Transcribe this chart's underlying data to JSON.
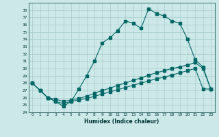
{
  "xlabel": "Humidex (Indice chaleur)",
  "bg_color": "#cce8e8",
  "grid_color": "#aacccc",
  "line_color": "#006666",
  "xlim": [
    -0.5,
    23.5
  ],
  "ylim": [
    24,
    39
  ],
  "yticks": [
    24,
    25,
    26,
    27,
    28,
    29,
    30,
    31,
    32,
    33,
    34,
    35,
    36,
    37,
    38
  ],
  "xticks": [
    0,
    1,
    2,
    3,
    4,
    5,
    6,
    7,
    8,
    9,
    10,
    11,
    12,
    13,
    14,
    15,
    16,
    17,
    18,
    19,
    20,
    21,
    22,
    23
  ],
  "series1_x": [
    0,
    1,
    2,
    3,
    4,
    5,
    6,
    7,
    8,
    9,
    10,
    11,
    12,
    13,
    14,
    15,
    16,
    17,
    18,
    19,
    20,
    21,
    22,
    23
  ],
  "series1_y": [
    28,
    27,
    26,
    25.5,
    24.8,
    25.5,
    27.2,
    29,
    31,
    33.5,
    34.2,
    35.2,
    36.5,
    36.2,
    35.5,
    38.2,
    37.5,
    37.2,
    36.5,
    36.2,
    34,
    31.2,
    30.2,
    27.2
  ],
  "series2_x": [
    0,
    1,
    2,
    3,
    4,
    5,
    6,
    7,
    8,
    9,
    10,
    11,
    12,
    13,
    14,
    15,
    16,
    17,
    18,
    19,
    20,
    21,
    22,
    23
  ],
  "series2_y": [
    28,
    27,
    26,
    25.8,
    25.5,
    25.7,
    25.9,
    26.2,
    26.6,
    27.0,
    27.3,
    27.7,
    28.0,
    28.4,
    28.7,
    29.1,
    29.4,
    29.7,
    30.0,
    30.2,
    30.5,
    30.8,
    30.0,
    27.2
  ],
  "series3_x": [
    0,
    1,
    2,
    3,
    4,
    5,
    6,
    7,
    8,
    9,
    10,
    11,
    12,
    13,
    14,
    15,
    16,
    17,
    18,
    19,
    20,
    21,
    22,
    23
  ],
  "series3_y": [
    28,
    27,
    26,
    25.5,
    25.2,
    25.5,
    25.7,
    25.9,
    26.2,
    26.5,
    26.8,
    27.1,
    27.4,
    27.7,
    28.0,
    28.3,
    28.6,
    28.8,
    29.1,
    29.4,
    29.7,
    30.0,
    27.2,
    27.2
  ]
}
